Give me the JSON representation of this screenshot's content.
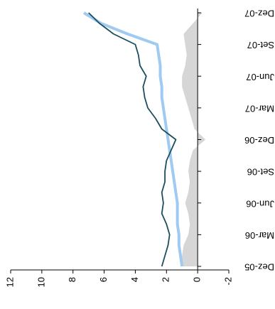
{
  "chart_data": {
    "type": "line",
    "categories": [
      "Dez-05",
      null,
      null,
      "Mar-06",
      null,
      null,
      "Jun-06",
      null,
      null,
      "Set-06",
      null,
      null,
      "Dez-06",
      null,
      null,
      "Mar-07",
      null,
      null,
      "Jun-07",
      null,
      null,
      "Set-07",
      null,
      null,
      "Dez-07"
    ],
    "series": [
      {
        "color": "#d6d6d6",
        "area": true,
        "values": [
          1.0,
          1.0,
          0.9,
          0.6,
          0.5,
          0.6,
          0.8,
          0.6,
          0.5,
          0.6,
          0.5,
          0.3,
          -0.5,
          0.2,
          0.4,
          0.6,
          0.8,
          1.0,
          1.0,
          0.8,
          0.7,
          0.8,
          0.9,
          0.3,
          -0.3
        ]
      },
      {
        "color": "#9fcbf2",
        "values": [
          1.0,
          1.1,
          1.2,
          1.2,
          1.3,
          1.3,
          1.3,
          1.4,
          1.5,
          1.6,
          1.7,
          1.8,
          1.9,
          2.0,
          2.1,
          2.2,
          2.3,
          2.3,
          2.4,
          2.4,
          2.5,
          2.6,
          4.5,
          6.2,
          7.3
        ]
      },
      {
        "color": "#1b4f5e",
        "values": [
          2.3,
          2.1,
          1.9,
          1.8,
          2.0,
          2.3,
          2.2,
          2.3,
          2.1,
          2.1,
          2.0,
          1.7,
          1.4,
          2.3,
          2.7,
          3.2,
          3.4,
          3.5,
          3.3,
          3.7,
          3.8,
          4.0,
          5.4,
          6.3,
          7.0
        ]
      }
    ],
    "ylim": [
      -2,
      12
    ],
    "yticks": [
      -2,
      0,
      2,
      4,
      6,
      8,
      10,
      12
    ]
  }
}
